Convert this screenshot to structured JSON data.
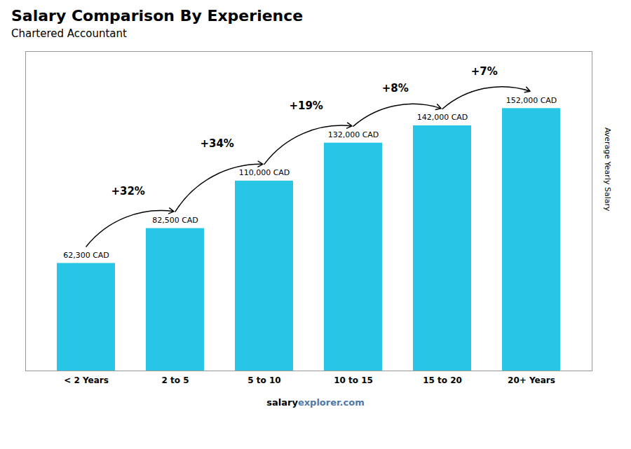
{
  "chart_data": {
    "type": "bar",
    "title": "Salary Comparison By Experience",
    "subtitle": "Chartered Accountant",
    "categories": [
      "< 2 Years",
      "2 to 5",
      "5 to 10",
      "10 to 15",
      "15 to 20",
      "20+ Years"
    ],
    "values": [
      62300,
      82500,
      110000,
      132000,
      142000,
      152000
    ],
    "value_labels": [
      "62,300 CAD",
      "82,500 CAD",
      "110,000 CAD",
      "132,000 CAD",
      "142,000 CAD",
      "152,000 CAD"
    ],
    "data_labels": true,
    "color": "#29c5e6",
    "ylabel": "Average Yearly Salary",
    "ylim": [
      0,
      185000
    ],
    "tick_labels": "x",
    "annotations": [
      "+32%",
      "+34%",
      "+19%",
      "+8%",
      "+7%"
    ],
    "caption": [
      "salary",
      "explorer.com"
    ]
  }
}
